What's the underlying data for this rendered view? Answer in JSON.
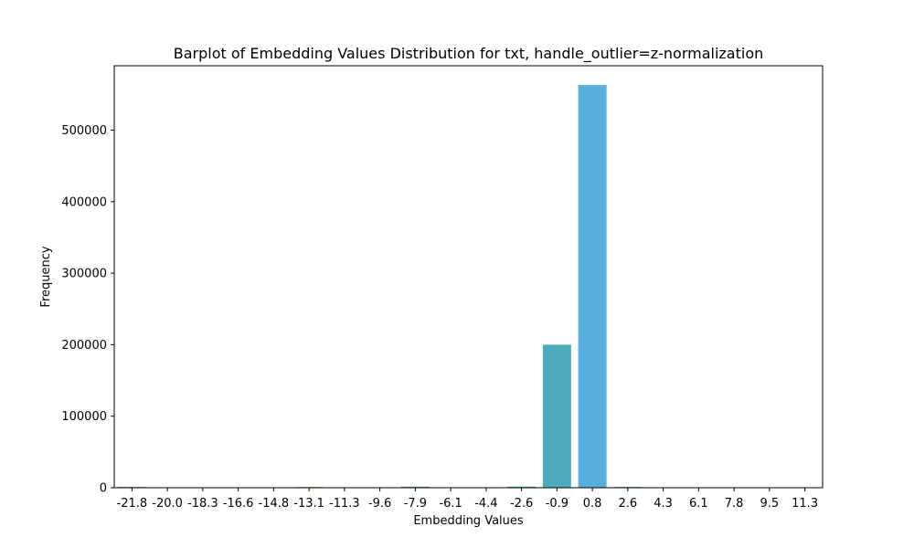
{
  "chart_data": {
    "type": "bar",
    "title": "Barplot of Embedding Values Distribution for txt, handle_outlier=z-normalization",
    "xlabel": "Embedding Values",
    "ylabel": "Frequency",
    "ylim": [
      0,
      590000
    ],
    "yticks": [
      0,
      100000,
      200000,
      300000,
      400000,
      500000
    ],
    "ytick_labels": [
      "0",
      "100000",
      "200000",
      "300000",
      "400000",
      "500000"
    ],
    "grid": false,
    "categories": [
      "-21.8",
      "-20.0",
      "-18.3",
      "-16.6",
      "-14.8",
      "-13.1",
      "-11.3",
      "-9.6",
      "-7.9",
      "-6.1",
      "-4.4",
      "-2.6",
      "-0.9",
      "0.8",
      "2.6",
      "4.3",
      "6.1",
      "7.8",
      "9.5",
      "11.3"
    ],
    "values": [
      1200,
      300,
      200,
      300,
      200,
      1000,
      300,
      200,
      1500,
      400,
      400,
      1500,
      200000,
      563000,
      1200,
      200,
      100,
      100,
      100,
      100
    ],
    "colors": [
      "#e8837a",
      "#e0876a",
      "#d48f55",
      "#c59545",
      "#b59a3e",
      "#a39e3e",
      "#8fa246",
      "#77a752",
      "#5dab60",
      "#4cab73",
      "#44aa85",
      "#43aa94",
      "#4eabbd",
      "#58aedc",
      "#6aa9e4",
      "#8a9fe6",
      "#a592e4",
      "#bd86de",
      "#d27ad2",
      "#e276be"
    ]
  }
}
